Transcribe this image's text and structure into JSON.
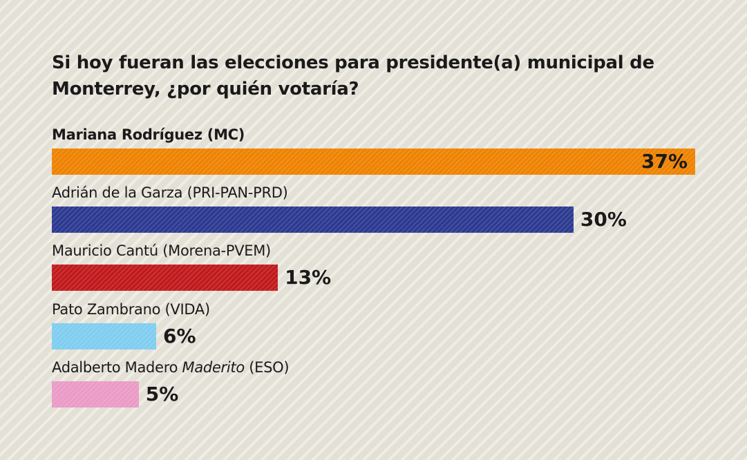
{
  "chart_data": {
    "type": "bar",
    "orientation": "horizontal",
    "title": "Si hoy fueran las elecciones para presidente(a) municipal de Monterrey, ¿por quién votaría?",
    "categories": [
      {
        "parts": [
          {
            "text": "Mariana Rodríguez (MC)",
            "italic": false
          }
        ],
        "bold": true
      },
      {
        "parts": [
          {
            "text": "Adrián de la Garza (PRI-PAN-PRD)",
            "italic": false
          }
        ],
        "bold": false
      },
      {
        "parts": [
          {
            "text": "Mauricio Cantú (Morena-PVEM)",
            "italic": false
          }
        ],
        "bold": false
      },
      {
        "parts": [
          {
            "text": "Pato Zambrano (VIDA)",
            "italic": false
          }
        ],
        "bold": false
      },
      {
        "parts": [
          {
            "text": "Adalberto Madero ",
            "italic": false
          },
          {
            "text": "Maderito",
            "italic": true
          },
          {
            "text": " (ESO)",
            "italic": false
          }
        ],
        "bold": false
      }
    ],
    "values": [
      37,
      30,
      13,
      6,
      5
    ],
    "value_labels": [
      "37%",
      "30%",
      "13%",
      "6%",
      "5%"
    ],
    "colors": [
      "#ee8200",
      "#2b3990",
      "#c0191b",
      "#7fcdf0",
      "#eb9ac6"
    ],
    "unit": "%",
    "xlim": [
      0,
      37
    ],
    "grid": false
  }
}
